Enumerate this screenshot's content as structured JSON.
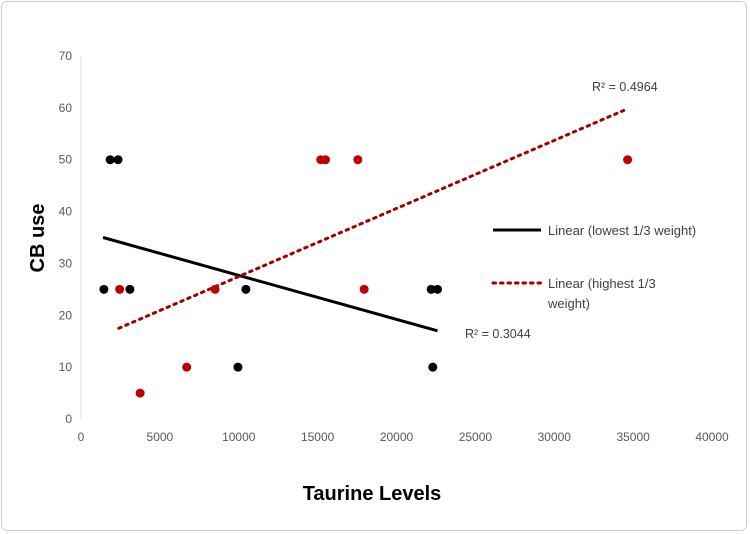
{
  "chart_data": {
    "type": "scatter",
    "title": "",
    "xlabel": "Taurine Levels",
    "ylabel": "CB use",
    "xlim": [
      0,
      40000
    ],
    "ylim": [
      0,
      70
    ],
    "xticks": [
      0,
      5000,
      10000,
      15000,
      20000,
      25000,
      30000,
      35000,
      40000
    ],
    "yticks": [
      0,
      10,
      20,
      30,
      40,
      50,
      60,
      70
    ],
    "grid": false,
    "legend_position": "right",
    "series": [
      {
        "name": "lowest 1/3 weight",
        "color": "#000000",
        "points": [
          [
            1450,
            25
          ],
          [
            1850,
            50
          ],
          [
            2350,
            50
          ],
          [
            3100,
            25
          ],
          [
            9950,
            10
          ],
          [
            10450,
            25
          ],
          [
            22200,
            25
          ],
          [
            22600,
            25
          ],
          [
            22300,
            10
          ]
        ],
        "trendline": {
          "label": "Linear (lowest 1/3 weight)",
          "x": [
            1400,
            22600
          ],
          "y": [
            35,
            17
          ],
          "r2_label": "R² = 0.3044",
          "style": "solid"
        }
      },
      {
        "name": "highest 1/3 weight",
        "color": "#c00000",
        "points": [
          [
            2450,
            25
          ],
          [
            3750,
            5
          ],
          [
            6700,
            10
          ],
          [
            8500,
            25
          ],
          [
            15200,
            50
          ],
          [
            15500,
            50
          ],
          [
            17550,
            50
          ],
          [
            17950,
            25
          ],
          [
            34650,
            50
          ]
        ],
        "trendline": {
          "label": "Linear (highest 1/3 weight)",
          "label_lines": [
            "Linear (highest 1/3",
            "weight)"
          ],
          "x": [
            2400,
            34400
          ],
          "y": [
            17.5,
            59.5
          ],
          "r2_label": "R² = 0.4964",
          "style": "dotted",
          "color": "#a00000"
        }
      }
    ]
  }
}
